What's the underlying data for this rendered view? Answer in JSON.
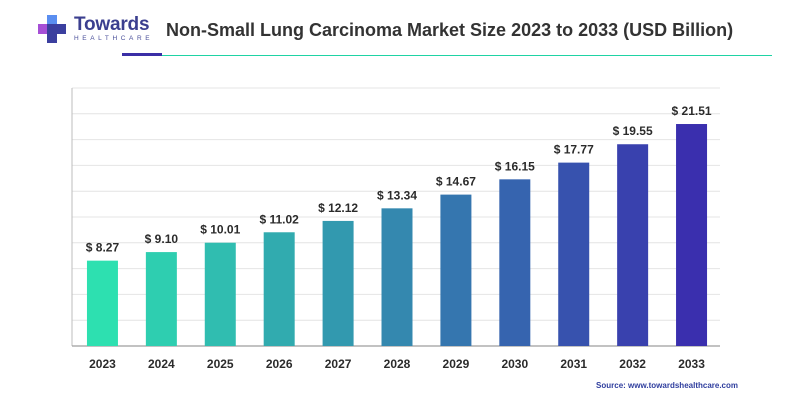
{
  "brand": {
    "name": "Towards",
    "tagline": "HEALTHCARE"
  },
  "title": "Non-Small Lung Carcinoma Market Size 2023 to 2033 (USD Billion)",
  "source": "Source: www.towardshealthcare.com",
  "colors": {
    "bar_start": "#2de0b0",
    "bar_end": "#3a2fae",
    "grid": "#e4e4e4",
    "accent_rule": "#3b2fa6",
    "teal_rule": "#1fd3a4"
  },
  "chart_data": {
    "type": "bar",
    "title": "Non-Small Lung Carcinoma Market Size 2023 to 2033 (USD Billion)",
    "xlabel": "",
    "ylabel": "",
    "ylim": [
      0,
      25
    ],
    "grid": true,
    "categories": [
      "2023",
      "2024",
      "2025",
      "2026",
      "2027",
      "2028",
      "2029",
      "2030",
      "2031",
      "2032",
      "2033"
    ],
    "values": [
      8.27,
      9.1,
      10.01,
      11.02,
      12.12,
      13.34,
      14.67,
      16.15,
      17.77,
      19.55,
      21.51
    ],
    "value_labels": [
      "$ 8.27",
      "$ 9.10",
      "$ 10.01",
      "$ 11.02",
      "$ 12.12",
      "$ 13.34",
      "$ 14.67",
      "$ 16.15",
      "$ 17.77",
      "$ 19.55",
      "$ 21.51"
    ]
  }
}
